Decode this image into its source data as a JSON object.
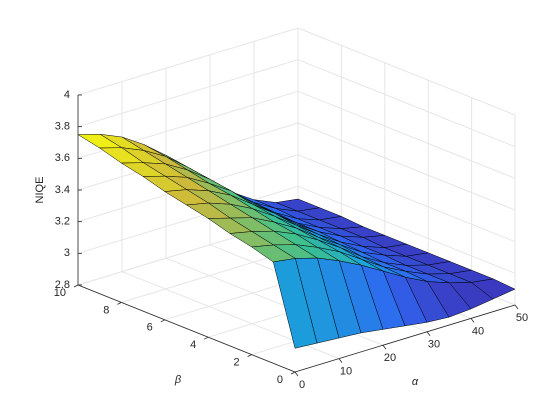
{
  "chart_data": {
    "type": "surface",
    "xlabel": "α",
    "ylabel": "β",
    "zlabel": "NIQE",
    "x": [
      0,
      5,
      10,
      15,
      20,
      25,
      30,
      35,
      40,
      45,
      50
    ],
    "y": [
      0,
      1,
      2,
      3,
      4,
      5,
      6,
      7,
      8,
      9,
      10
    ],
    "z": [
      [
        2.95,
        2.94,
        2.93,
        2.92,
        2.9,
        2.88,
        2.86,
        2.85,
        2.86,
        2.88,
        2.9
      ],
      [
        3.44,
        3.42,
        3.38,
        3.32,
        3.25,
        3.17,
        3.09,
        3.02,
        2.97,
        2.93,
        2.91
      ],
      [
        3.48,
        3.45,
        3.41,
        3.35,
        3.28,
        3.19,
        3.1,
        3.03,
        2.97,
        2.93,
        2.91
      ],
      [
        3.51,
        3.48,
        3.44,
        3.38,
        3.3,
        3.21,
        3.11,
        3.03,
        2.97,
        2.93,
        2.91
      ],
      [
        3.55,
        3.51,
        3.47,
        3.4,
        3.32,
        3.22,
        3.13,
        3.04,
        2.98,
        2.93,
        2.91
      ],
      [
        3.58,
        3.55,
        3.5,
        3.43,
        3.34,
        3.24,
        3.14,
        3.05,
        2.98,
        2.93,
        2.91
      ],
      [
        3.61,
        3.58,
        3.53,
        3.46,
        3.36,
        3.26,
        3.15,
        3.06,
        2.99,
        2.94,
        2.91
      ],
      [
        3.65,
        3.61,
        3.56,
        3.48,
        3.39,
        3.27,
        3.16,
        3.06,
        2.99,
        2.94,
        2.91
      ],
      [
        3.68,
        3.64,
        3.59,
        3.51,
        3.41,
        3.29,
        3.17,
        3.07,
        2.99,
        2.94,
        2.92
      ],
      [
        3.72,
        3.68,
        3.62,
        3.54,
        3.43,
        3.31,
        3.19,
        3.08,
        3.0,
        2.94,
        2.92
      ],
      [
        3.75,
        3.71,
        3.65,
        3.56,
        3.45,
        3.33,
        3.2,
        3.09,
        3.0,
        2.94,
        2.92
      ]
    ],
    "xlim": [
      0,
      50
    ],
    "xticks": [
      0,
      10,
      20,
      30,
      40,
      50
    ],
    "ylim": [
      0,
      10
    ],
    "yticks": [
      0,
      2,
      4,
      6,
      8,
      10
    ],
    "zlim": [
      2.8,
      4
    ],
    "zticks": [
      2.8,
      3,
      3.2,
      3.4,
      3.6,
      3.8,
      4
    ],
    "grid": true,
    "edge_color": "#000000"
  }
}
